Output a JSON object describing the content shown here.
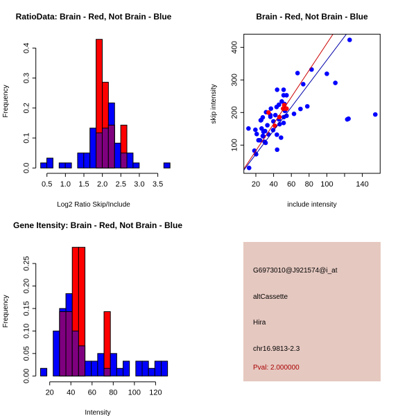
{
  "chart_data": [
    {
      "type": "bar",
      "subtype": "overlaid-histogram",
      "title": "RatioData: Brain - Red, Not Brain - Blue",
      "xlabel": "Log2 Ratio Skip/Include",
      "ylabel": "Frequency",
      "bin_start": 0.33,
      "bin_width": 0.1667,
      "xticks": [
        "0.5",
        "1.0",
        "1.5",
        "2.0",
        "2.5",
        "3.0",
        "3.5"
      ],
      "yticks": [
        "0.0",
        "0.1",
        "0.2",
        "0.3",
        "0.4"
      ],
      "series": [
        {
          "name": "Not Brain",
          "color": "#0000ff",
          "values": [
            0.017,
            0.033,
            0,
            0.017,
            0.017,
            0,
            0.05,
            0.05,
            0.133,
            0.117,
            0.133,
            0.217,
            0.083,
            0.05,
            0.05,
            0.017,
            0,
            0,
            0,
            0,
            0.017
          ]
        },
        {
          "name": "Brain",
          "color": "#ff0000",
          "values": [
            0,
            0,
            0,
            0,
            0,
            0,
            0,
            0,
            0,
            0.429,
            0.286,
            0.143,
            0,
            0.143,
            0,
            0,
            0,
            0,
            0,
            0,
            0
          ]
        }
      ],
      "overlap_color": "#7f007f"
    },
    {
      "type": "scatter",
      "title": "Brain - Red, Not Brain - Blue",
      "xlabel": "include intensity",
      "ylabel": "skip intensity",
      "xlim": [
        6.5,
        160
      ],
      "ylim": [
        13,
        440
      ],
      "xticks": [
        "20",
        "40",
        "60",
        "80",
        "100",
        "140"
      ],
      "yticks": [
        "100",
        "200",
        "300",
        "400"
      ],
      "series": [
        {
          "name": "Not Brain",
          "color": "#0000ff",
          "points": [
            [
              12.4,
              30
            ],
            [
              11.7,
              151
            ],
            [
              19.5,
              147
            ],
            [
              21,
              134
            ],
            [
              18.4,
              83
            ],
            [
              20.3,
              72
            ],
            [
              23,
              115
            ],
            [
              24.7,
              115
            ],
            [
              26,
              177
            ],
            [
              25.5,
              176
            ],
            [
              27.8,
              185
            ],
            [
              26.5,
              151
            ],
            [
              27.8,
              128
            ],
            [
              28.6,
              127
            ],
            [
              28.6,
              141
            ],
            [
              30.4,
              143
            ],
            [
              29.9,
              110
            ],
            [
              31,
              107
            ],
            [
              31.5,
              201
            ],
            [
              33,
              161
            ],
            [
              34.3,
              133
            ],
            [
              37,
              212
            ],
            [
              36.4,
              192
            ],
            [
              36.4,
              187
            ],
            [
              39.8,
              173
            ],
            [
              39.5,
              146
            ],
            [
              42,
              192
            ],
            [
              43.4,
              217
            ],
            [
              46,
              224
            ],
            [
              43.7,
              132
            ],
            [
              44,
              86
            ],
            [
              44,
              270
            ],
            [
              46,
              179
            ],
            [
              46.8,
              164
            ],
            [
              48.4,
              123
            ],
            [
              49.2,
              234
            ],
            [
              51.3,
              270
            ],
            [
              51.3,
              253
            ],
            [
              54.6,
              253
            ],
            [
              51.5,
              186
            ],
            [
              51.3,
              168
            ],
            [
              52.3,
              226
            ],
            [
              53.3,
              212
            ],
            [
              54.6,
              190
            ],
            [
              52.8,
              205
            ],
            [
              63,
              196
            ],
            [
              67,
              321
            ],
            [
              70.3,
              211
            ],
            [
              73.4,
              287
            ],
            [
              78,
              219
            ],
            [
              82.8,
              332
            ],
            [
              100,
              319
            ],
            [
              109.6,
              291
            ],
            [
              123,
              179
            ],
            [
              124.4,
              181
            ],
            [
              125.7,
              423
            ],
            [
              154.6,
              194
            ]
          ]
        },
        {
          "name": "Brain",
          "color": "#ff0000",
          "points": [
            [
              34.3,
              200
            ],
            [
              41.6,
              159
            ],
            [
              46.6,
              186
            ],
            [
              50.7,
              212
            ],
            [
              52,
              223
            ],
            [
              54.6,
              212
            ],
            [
              51.3,
              212
            ]
          ]
        }
      ],
      "fit_lines": [
        {
          "name": "Brain fit",
          "color": "#cc0000",
          "slope": 4.12,
          "intercept": 0
        },
        {
          "name": "Not Brain fit",
          "color": "#0000aa",
          "slope": 3.61,
          "intercept": 0
        }
      ]
    },
    {
      "type": "bar",
      "subtype": "overlaid-histogram",
      "title": "Gene Itensity: Brain - Red, Not Brain - Blue",
      "xlabel": "Intensity",
      "ylabel": "Frequency",
      "bin_start": 11.3,
      "bin_width": 6.0,
      "xticks": [
        "20",
        "40",
        "60",
        "80",
        "100",
        "120"
      ],
      "yticks": [
        "0.00",
        "0.05",
        "0.10",
        "0.15",
        "0.20",
        "0.25"
      ],
      "series": [
        {
          "name": "Not Brain",
          "color": "#0000ff",
          "values": [
            0.017,
            0,
            0.1,
            0.15,
            0.183,
            0.1,
            0.067,
            0.033,
            0.033,
            0.05,
            0.017,
            0.05,
            0.017,
            0.033,
            0,
            0.033,
            0.033,
            0.017,
            0.033,
            0.033
          ]
        },
        {
          "name": "Brain",
          "color": "#ff0000",
          "values": [
            0,
            0,
            0,
            0.143,
            0.143,
            0.286,
            0.286,
            0,
            0,
            0,
            0.143,
            0,
            0,
            0,
            0,
            0,
            0,
            0,
            0,
            0
          ]
        }
      ],
      "overlap_color": "#7f007f"
    }
  ],
  "info": {
    "probe": "G6973010@J921574@i_at",
    "event_type": "altCassette",
    "gene": "Hira",
    "location": "chr16.9813-2.3",
    "pval": "Pval: 2.000000",
    "pval_color": "#aa0000",
    "background": "#e5c8c0"
  }
}
